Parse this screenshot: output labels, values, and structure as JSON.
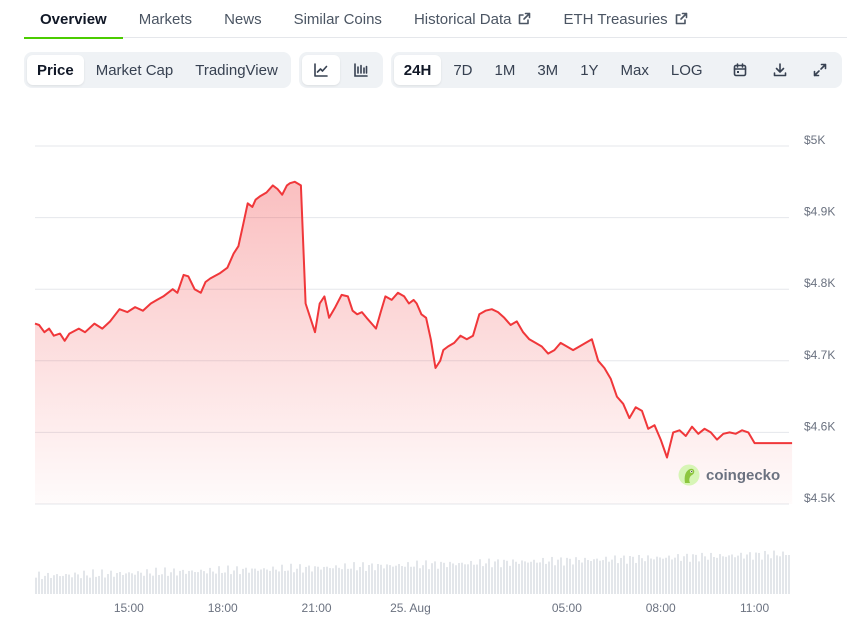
{
  "tabs": [
    {
      "label": "Overview",
      "active": true,
      "external": false
    },
    {
      "label": "Markets",
      "active": false,
      "external": false
    },
    {
      "label": "News",
      "active": false,
      "external": false
    },
    {
      "label": "Similar Coins",
      "active": false,
      "external": false
    },
    {
      "label": "Historical Data",
      "active": false,
      "external": true
    },
    {
      "label": "ETH Treasuries",
      "active": false,
      "external": true
    }
  ],
  "toolbar": {
    "views": [
      {
        "label": "Price",
        "active": true
      },
      {
        "label": "Market Cap",
        "active": false
      },
      {
        "label": "TradingView",
        "active": false
      }
    ],
    "chart_types": [
      {
        "icon": "line-chart-icon",
        "active": true
      },
      {
        "icon": "candlestick-chart-icon",
        "active": false
      }
    ],
    "ranges": [
      {
        "label": "24H",
        "active": true
      },
      {
        "label": "7D",
        "active": false
      },
      {
        "label": "1M",
        "active": false
      },
      {
        "label": "3M",
        "active": false
      },
      {
        "label": "1Y",
        "active": false
      },
      {
        "label": "Max",
        "active": false
      },
      {
        "label": "LOG",
        "active": false
      }
    ],
    "actions": [
      {
        "icon": "calendar-icon"
      },
      {
        "icon": "download-icon"
      },
      {
        "icon": "fullscreen-icon"
      }
    ]
  },
  "watermark": {
    "text": "coingecko"
  },
  "colors": {
    "line": "#f0373a",
    "accent": "#4bcc00",
    "grid": "#e5e7eb",
    "volume": "#e3e6ea"
  },
  "chart_data": {
    "type": "line",
    "x_hours": [
      12.0,
      12.13,
      12.3,
      12.45,
      12.6,
      12.8,
      12.95,
      13.1,
      13.4,
      13.6,
      13.9,
      14.15,
      14.4,
      14.7,
      14.95,
      15.2,
      15.45,
      15.7,
      15.9,
      16.1,
      16.4,
      16.55,
      16.75,
      16.9,
      17.1,
      17.3,
      17.45,
      17.6,
      17.9,
      18.15,
      18.35,
      18.5,
      18.65,
      18.8,
      18.95,
      19.05,
      19.2,
      19.4,
      19.6,
      19.75,
      19.9,
      20.05,
      20.15,
      20.3,
      20.5,
      20.65,
      20.8,
      20.95,
      21.1,
      21.25,
      21.4,
      21.6,
      21.8,
      22.0,
      22.15,
      22.3,
      22.45,
      22.6,
      22.8,
      22.9,
      23.05,
      23.2,
      23.4,
      23.6,
      23.8,
      23.95,
      24.1,
      24.2,
      24.35,
      24.5,
      24.65,
      24.8,
      24.95,
      25.05,
      25.2,
      25.4,
      25.6,
      25.8,
      26.0,
      26.2,
      26.4,
      26.6,
      26.8,
      27.0,
      27.2,
      27.4,
      27.6,
      27.8,
      28.0,
      28.2,
      28.4,
      28.6,
      28.8,
      29.0,
      29.2,
      29.4,
      29.6,
      29.8,
      30.0,
      30.2,
      30.4,
      30.6,
      30.8,
      31.0,
      31.2,
      31.4,
      31.6,
      31.8,
      32.0,
      32.2,
      32.4,
      32.6,
      32.8,
      33.0,
      33.2,
      33.4,
      33.6,
      33.8,
      34.0,
      34.2,
      34.4,
      34.6,
      34.8,
      35.0,
      35.2,
      35.4,
      35.6,
      35.8,
      36.0,
      36.2
    ],
    "values": [
      4752,
      4750,
      4740,
      4745,
      4735,
      4738,
      4728,
      4738,
      4745,
      4740,
      4752,
      4745,
      4755,
      4772,
      4768,
      4775,
      4770,
      4780,
      4785,
      4790,
      4800,
      4795,
      4820,
      4818,
      4800,
      4795,
      4810,
      4815,
      4822,
      4830,
      4850,
      4860,
      4890,
      4920,
      4915,
      4925,
      4930,
      4935,
      4945,
      4940,
      4932,
      4945,
      4948,
      4950,
      4945,
      4780,
      4760,
      4740,
      4780,
      4790,
      4760,
      4775,
      4792,
      4790,
      4770,
      4765,
      4768,
      4760,
      4750,
      4745,
      4768,
      4790,
      4785,
      4795,
      4790,
      4780,
      4785,
      4780,
      4765,
      4760,
      4730,
      4690,
      4700,
      4715,
      4720,
      4725,
      4735,
      4730,
      4735,
      4765,
      4770,
      4772,
      4768,
      4760,
      4750,
      4755,
      4740,
      4730,
      4725,
      4720,
      4710,
      4715,
      4725,
      4720,
      4715,
      4720,
      4725,
      4730,
      4700,
      4690,
      4675,
      4650,
      4640,
      4620,
      4635,
      4630,
      4605,
      4610,
      4590,
      4565,
      4600,
      4603,
      4595,
      4608,
      4598,
      4605,
      4600,
      4590,
      4598,
      4600,
      4598,
      4603,
      4600,
      4585,
      4585,
      4585,
      4585,
      4585,
      4585,
      4585
    ],
    "x_ticks": [
      {
        "hour": 15,
        "label": "15:00"
      },
      {
        "hour": 18,
        "label": "18:00"
      },
      {
        "hour": 21,
        "label": "21:00"
      },
      {
        "hour": 24,
        "label": "25. Aug"
      },
      {
        "hour": 29,
        "label": "05:00"
      },
      {
        "hour": 32,
        "label": "08:00"
      },
      {
        "hour": 35,
        "label": "11:00"
      }
    ],
    "y_ticks": [
      {
        "value": 5000,
        "label": "$5K"
      },
      {
        "value": 4900,
        "label": "$4.9K"
      },
      {
        "value": 4800,
        "label": "$4.8K"
      },
      {
        "value": 4700,
        "label": "$4.7K"
      },
      {
        "value": 4600,
        "label": "$4.6K"
      },
      {
        "value": 4500,
        "label": "$4.5K"
      }
    ],
    "xlim": [
      12.0,
      36.1
    ],
    "ylim": [
      4500,
      5000
    ],
    "grid": true,
    "legend": "none"
  }
}
